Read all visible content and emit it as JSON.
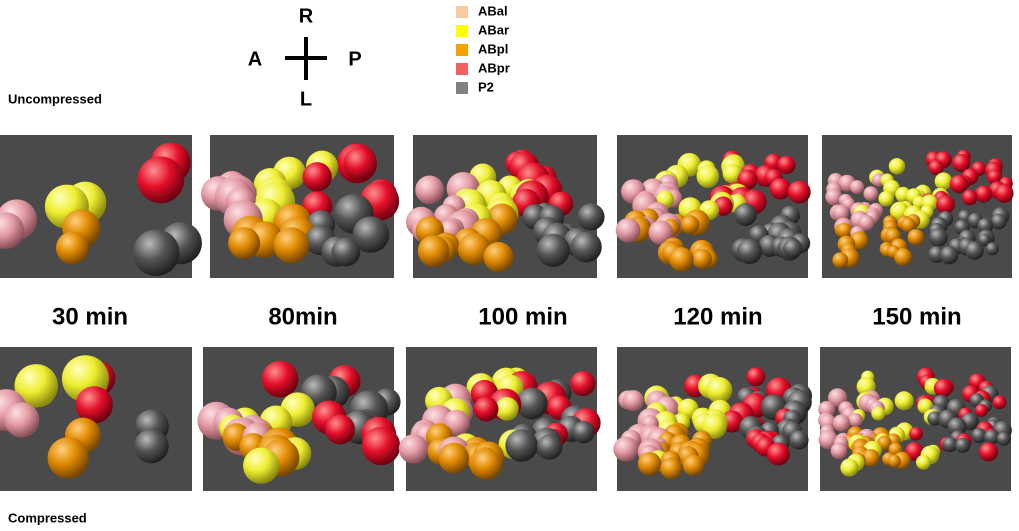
{
  "compass": {
    "top": "R",
    "bottom": "L",
    "left": "A",
    "right": "P"
  },
  "legend": [
    {
      "label": "ABal",
      "color": "#f9c9a0"
    },
    {
      "label": "ABar",
      "color": "#ffff00"
    },
    {
      "label": "ABpl",
      "color": "#f5a100"
    },
    {
      "label": "ABpr",
      "color": "#f06060"
    },
    {
      "label": "P2",
      "color": "#808080"
    }
  ],
  "rows": {
    "top": "Uncompressed",
    "bottom": "Compressed"
  },
  "times": [
    "30 min",
    "80min",
    "100 min",
    "120 min",
    "150 min"
  ]
}
